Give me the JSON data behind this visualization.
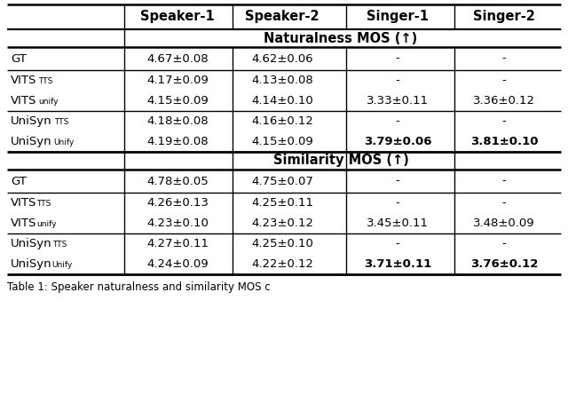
{
  "section1_header": "Naturalness MOS (↑)",
  "section2_header": "Similarity MOS (↑)",
  "naturalness_rows": [
    {
      "model": "GT",
      "sub": "",
      "space": false,
      "sp1": "4.67±0.08",
      "sp2": "4.62±0.06",
      "sg1": "-",
      "sg2": "-",
      "bold": false
    },
    {
      "model": "VITS",
      "sub": "TTS",
      "space": true,
      "sp1": "4.17±0.09",
      "sp2": "4.13±0.08",
      "sg1": "-",
      "sg2": "-",
      "bold": false
    },
    {
      "model": "VITS",
      "sub": "unify",
      "space": true,
      "sp1": "4.15±0.09",
      "sp2": "4.14±0.10",
      "sg1": "3.33±0.11",
      "sg2": "3.36±0.12",
      "bold": false
    },
    {
      "model": "UniSyn",
      "sub": "TTS",
      "space": true,
      "sp1": "4.18±0.08",
      "sp2": "4.16±0.12",
      "sg1": "-",
      "sg2": "-",
      "bold": false
    },
    {
      "model": "UniSyn",
      "sub": "Unify",
      "space": true,
      "sp1": "4.19±0.08",
      "sp2": "4.15±0.09",
      "sg1": "3.79±0.06",
      "sg2": "3.81±0.10",
      "bold": true
    }
  ],
  "similarity_rows": [
    {
      "model": "GT",
      "sub": "",
      "space": false,
      "sp1": "4.78±0.05",
      "sp2": "4.75±0.07",
      "sg1": "-",
      "sg2": "-",
      "bold": false
    },
    {
      "model": "VITS",
      "sub": "TTS",
      "space": false,
      "sp1": "4.26±0.13",
      "sp2": "4.25±0.11",
      "sg1": "-",
      "sg2": "-",
      "bold": false
    },
    {
      "model": "VITS",
      "sub": "unify",
      "space": false,
      "sp1": "4.23±0.10",
      "sp2": "4.23±0.12",
      "sg1": "3.45±0.11",
      "sg2": "3.48±0.09",
      "bold": false
    },
    {
      "model": "UniSyn",
      "sub": "TTS",
      "space": false,
      "sp1": "4.27±0.11",
      "sp2": "4.25±0.10",
      "sg1": "-",
      "sg2": "-",
      "bold": false
    },
    {
      "model": "UniSyn",
      "sub": "Unify",
      "space": false,
      "sp1": "4.24±0.09",
      "sp2": "4.22±0.12",
      "sg1": "3.71±0.11",
      "sg2": "3.76±0.12",
      "bold": true
    }
  ],
  "col_headers": [
    "Speaker-1",
    "Speaker-2",
    "Singer-1",
    "Singer-2"
  ],
  "caption": "Table 1: Speaker naturalness and similarity MOS c",
  "bg_color": "#ffffff",
  "text_color": "#000000",
  "col_header_fs": 10.5,
  "section_header_fs": 10.5,
  "data_fs": 9.5,
  "row_label_fs": 9.5,
  "sub_fs": 6.5,
  "caption_fs": 8.5
}
